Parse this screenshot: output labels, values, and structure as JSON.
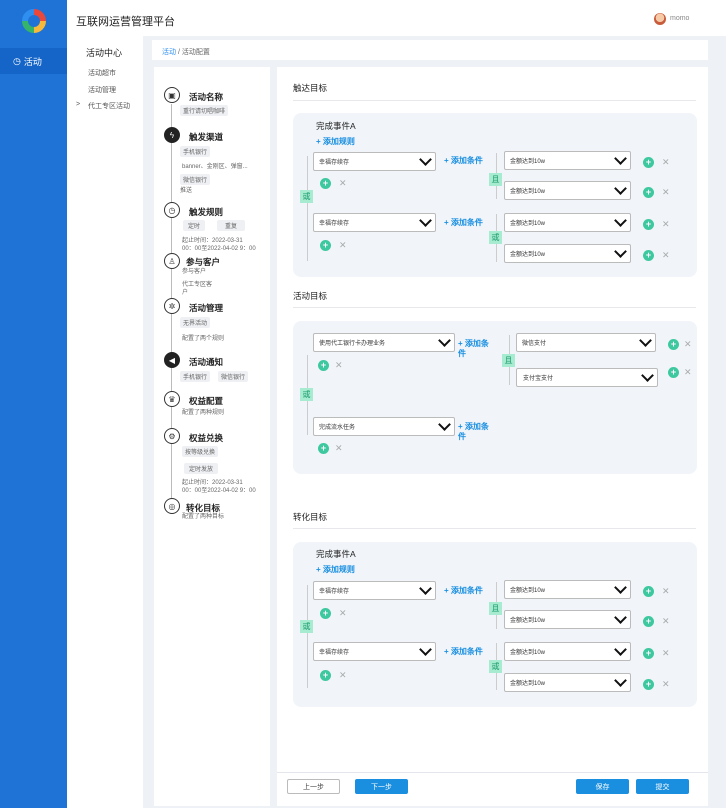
{
  "app": {
    "title": "互联网运营管理平台",
    "user": "momo"
  },
  "nav": {
    "active": "活动",
    "active_icon": "gauge-icon"
  },
  "subnav": {
    "title": "活动中心",
    "items": [
      "活动超市",
      "活动管理",
      "代工专区活动"
    ],
    "expander": ">"
  },
  "breadcrumb": {
    "root": "活动",
    "sep": "/",
    "current": "活动配置"
  },
  "steps": [
    {
      "title": "活动名称",
      "icon": "image-icon",
      "lines": [
        "重行请切唱咖啡"
      ]
    },
    {
      "title": "触发渠道",
      "icon": "bolt-icon",
      "lines": [
        "手机银行",
        "banner、金刚区、弹窗...",
        "微信银行",
        "推送"
      ]
    },
    {
      "title": "触发规则",
      "icon": "clock-icon",
      "lines": [
        "定时",
        "重复",
        "起止时间：2022-03-31",
        "00：00至2022-04-02 9：00"
      ]
    },
    {
      "title": "参与客户",
      "icon": "user-icon",
      "lines": [
        "参与客户",
        "代工专区客",
        "户"
      ]
    },
    {
      "title": "活动管理",
      "icon": "settings-icon",
      "lines": [
        "无界活动",
        "配置了两个规则"
      ]
    },
    {
      "title": "活动通知",
      "icon": "megaphone-icon",
      "lines": [
        "手机银行",
        "微信银行"
      ]
    },
    {
      "title": "权益配置",
      "icon": "crown-icon",
      "lines": [
        "配置了两种规则"
      ]
    },
    {
      "title": "权益兑换",
      "icon": "gear-icon",
      "lines": [
        "按等级兑换",
        "定时发放",
        "起止时间：2022-03-31",
        "00：00至2022-04-02 9：00"
      ]
    },
    {
      "title": "转化目标",
      "icon": "target-icon",
      "lines": [
        "配置了两种目标"
      ]
    }
  ],
  "reach": {
    "title": "触达目标",
    "event": "完成事件A",
    "add_rule": "+ 添加规则",
    "or": "或",
    "and": "且",
    "groups": [
      {
        "left": "幸福存续存",
        "add_cond": "+ 添加条件",
        "rel": "且",
        "right": [
          "金额达到10w",
          "金额达到10w"
        ]
      },
      {
        "left": "幸福存续存",
        "add_cond": "+ 添加条件",
        "rel": "或",
        "right": [
          "金额达到10w",
          "金额达到10w"
        ]
      }
    ]
  },
  "activity": {
    "title": "活动目标",
    "or": "或",
    "groups": [
      {
        "left": "使用代工银行卡办理业务",
        "add_cond_1": "+ 添加条",
        "add_cond_2": "件",
        "rel": "且",
        "right": [
          "微信支付",
          "支付宝支付"
        ]
      },
      {
        "left": "完成流水任务",
        "add_cond_1": "+ 添加条",
        "add_cond_2": "件"
      }
    ]
  },
  "convert": {
    "title": "转化目标",
    "event": "完成事件A",
    "add_rule": "+ 添加规则",
    "or": "或",
    "groups": [
      {
        "left": "幸福存续存",
        "add_cond": "+ 添加条件",
        "rel": "且",
        "right": [
          "金额达到10w",
          "金额达到10w"
        ]
      },
      {
        "left": "幸福存续存",
        "add_cond": "+ 添加条件",
        "rel": "或",
        "right": [
          "金额达到10w",
          "金额达到10w"
        ]
      }
    ]
  },
  "footer": {
    "prev": "上一步",
    "next": "下一步",
    "save": "保存",
    "submit": "提交"
  },
  "colors": {
    "primary": "#1f73d6",
    "accent": "#1a8fe0",
    "green": "#3ec8a0"
  }
}
